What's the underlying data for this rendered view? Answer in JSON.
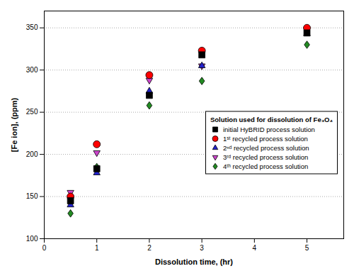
{
  "chart_data": {
    "type": "scatter",
    "x": [
      0.5,
      1.0,
      2.0,
      3.0,
      5.0
    ],
    "series": [
      {
        "name": "initial HyBRID process solution",
        "color": "#000000",
        "marker": "square",
        "values": [
          145,
          183,
          270,
          318,
          344
        ]
      },
      {
        "name": "1ˢᵗ recycled process solution",
        "color": "#ff0000",
        "marker": "circle",
        "values": [
          150,
          212,
          294,
          323,
          350
        ]
      },
      {
        "name": "2ⁿᵈ recycled process solution",
        "color": "#2222cc",
        "marker": "triangle-up",
        "values": [
          140,
          178,
          275,
          305,
          343
        ]
      },
      {
        "name": "3ʳᵈ recycled process solution",
        "color": "#cc44cc",
        "marker": "triangle-down",
        "values": [
          155,
          202,
          288,
          305,
          348
        ]
      },
      {
        "name": "4ᵗʰ recycled process solution",
        "color": "#228B22",
        "marker": "diamond",
        "values": [
          130,
          185,
          258,
          287,
          330
        ]
      }
    ],
    "x_label": "Dissolution time, (hr)",
    "y_label": "[Fe ion], (ppm)",
    "xlim": [
      0,
      5.7
    ],
    "ylim": [
      100,
      370
    ],
    "xticks": [
      0,
      1,
      2,
      3,
      4,
      5
    ],
    "yticks": [
      100,
      150,
      200,
      250,
      300,
      350
    ],
    "legend_title": "Solution used for dissolution of Fe₃O₄",
    "legend": "right",
    "grid": true
  }
}
